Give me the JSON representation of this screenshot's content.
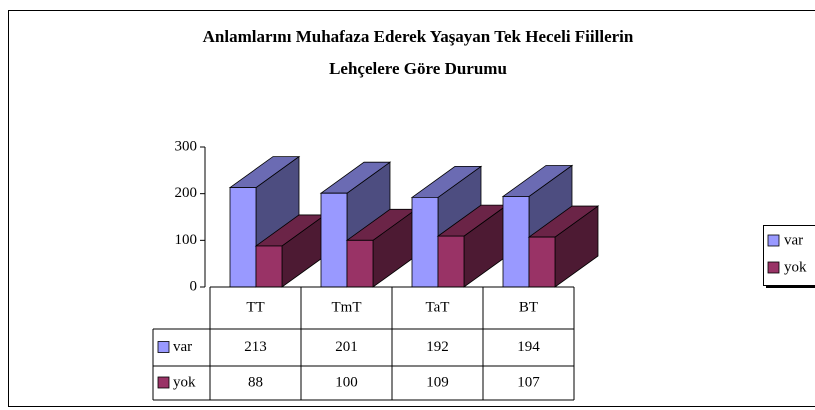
{
  "chart_data": {
    "type": "bar3d",
    "title": [
      "Anlamlarını Muhafaza Ederek Yaşayan Tek Heceli Fiillerin",
      "Lehçelere Göre Durumu"
    ],
    "categories": [
      "TT",
      "TmT",
      "TaT",
      "BT"
    ],
    "series": [
      {
        "name": "var",
        "color": "#9999ff",
        "values": [
          213,
          201,
          192,
          194
        ]
      },
      {
        "name": "yok",
        "color": "#993366",
        "values": [
          88,
          100,
          109,
          107
        ]
      }
    ],
    "ylim": [
      0,
      300
    ],
    "yticks": [
      0,
      100,
      200,
      300
    ],
    "legend": "right",
    "data_table": true
  }
}
